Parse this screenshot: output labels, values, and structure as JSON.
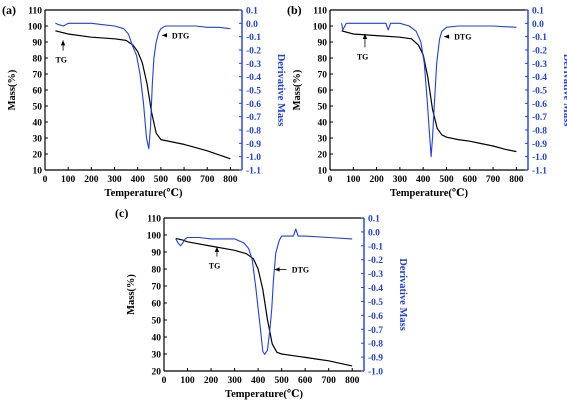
{
  "chart_data": [
    {
      "panel_label": "(a)",
      "type": "line",
      "xlabel": "Temperature(℃)",
      "ylabel": "Mass(%)",
      "y2label": "Derivative Mass",
      "xlim": [
        0,
        850
      ],
      "ylim": [
        10,
        110
      ],
      "y2lim": [
        -1.1,
        0.1
      ],
      "xticks": [
        0,
        100,
        200,
        300,
        400,
        500,
        600,
        700,
        800
      ],
      "yticks": [
        10,
        20,
        30,
        40,
        50,
        60,
        70,
        80,
        90,
        100,
        110
      ],
      "y2ticks": [
        -1.1,
        -1.0,
        -0.9,
        -0.8,
        -0.7,
        -0.6,
        -0.5,
        -0.4,
        -0.3,
        -0.2,
        -0.1,
        0.0,
        0.1
      ],
      "y2tick_labels": [
        "-1.1",
        "-1.0",
        "-0.9",
        "-0.8",
        "-0.7",
        "-0.6",
        "-0.5",
        "-0.4",
        "-0.3",
        "-0.2",
        "-0.1",
        "0.0",
        "0.1"
      ],
      "annotations": [
        {
          "text": "TG",
          "x": 70,
          "y": 79,
          "arrow_to": [
            78,
            91
          ]
        },
        {
          "text": "DTG",
          "x": 585,
          "y": -0.09,
          "arrow_to": [
            505,
            -0.09
          ]
        }
      ],
      "series": [
        {
          "name": "TG",
          "axis": "left",
          "color": "#000000",
          "x": [
            45,
            100,
            200,
            300,
            350,
            380,
            400,
            420,
            440,
            460,
            480,
            500,
            550,
            600,
            650,
            700,
            750,
            800
          ],
          "y": [
            97,
            95,
            93,
            92,
            91,
            88,
            84,
            77,
            64,
            46,
            33,
            29,
            27.5,
            26,
            24,
            22,
            19.5,
            17
          ]
        },
        {
          "name": "DTG",
          "axis": "right",
          "color": "#1f3fe0",
          "x": [
            45,
            60,
            80,
            100,
            150,
            200,
            250,
            300,
            340,
            360,
            380,
            395,
            410,
            425,
            438,
            448,
            455,
            463,
            470,
            480,
            490,
            500,
            520,
            550,
            600,
            650,
            700,
            750,
            800
          ],
          "y": [
            0.0,
            -0.01,
            -0.02,
            0.0,
            0.0,
            0.0,
            -0.01,
            -0.02,
            -0.04,
            -0.08,
            -0.18,
            -0.24,
            -0.38,
            -0.6,
            -0.86,
            -0.94,
            -0.78,
            -0.46,
            -0.26,
            -0.14,
            -0.07,
            -0.04,
            -0.02,
            -0.02,
            -0.02,
            -0.02,
            -0.03,
            -0.03,
            -0.04
          ]
        }
      ]
    },
    {
      "panel_label": "(b)",
      "type": "line",
      "xlabel": "Temperature(℃)",
      "ylabel": "Mass(%)",
      "y2label": "Derivative Mass",
      "xlim": [
        0,
        850
      ],
      "ylim": [
        10,
        110
      ],
      "y2lim": [
        -1.1,
        0.1
      ],
      "xticks": [
        0,
        100,
        200,
        300,
        400,
        500,
        600,
        700,
        800
      ],
      "yticks": [
        10,
        20,
        30,
        40,
        50,
        60,
        70,
        80,
        90,
        100,
        110
      ],
      "y2ticks": [
        -1.1,
        -1.0,
        -0.9,
        -0.8,
        -0.7,
        -0.6,
        -0.5,
        -0.4,
        -0.3,
        -0.2,
        -0.1,
        0.0,
        0.1
      ],
      "y2tick_labels": [
        "-1.1",
        "-1.0",
        "-0.9",
        "-0.8",
        "-0.7",
        "-0.6",
        "-0.5",
        "-0.4",
        "-0.3",
        "-0.2",
        "-0.1",
        "0.0",
        "0.1"
      ],
      "annotations": [
        {
          "text": "TG",
          "x": 140,
          "y": 81,
          "arrow_to": [
            150,
            95
          ]
        },
        {
          "text": "DTG",
          "x": 570,
          "y": -0.1,
          "arrow_to": [
            490,
            -0.1
          ]
        }
      ],
      "series": [
        {
          "name": "TG",
          "axis": "left",
          "color": "#000000",
          "x": [
            50,
            100,
            200,
            300,
            350,
            380,
            400,
            420,
            440,
            460,
            480,
            500,
            550,
            600,
            650,
            700,
            750,
            800
          ],
          "y": [
            97,
            95,
            94,
            93,
            92,
            88,
            82,
            68,
            48,
            36,
            32,
            30.5,
            29,
            28,
            26.5,
            25,
            23,
            21.5
          ]
        },
        {
          "name": "DTG",
          "axis": "right",
          "color": "#1f3fe0",
          "x": [
            50,
            55,
            70,
            100,
            150,
            200,
            240,
            250,
            260,
            300,
            340,
            370,
            390,
            405,
            418,
            428,
            434,
            440,
            448,
            458,
            470,
            480,
            500,
            550,
            600,
            700,
            800
          ],
          "y": [
            0.0,
            -0.05,
            0.0,
            0.0,
            0.0,
            0.0,
            0.0,
            -0.05,
            0.0,
            0.0,
            -0.02,
            -0.06,
            -0.14,
            -0.3,
            -0.6,
            -0.85,
            -1.0,
            -0.86,
            -0.6,
            -0.3,
            -0.12,
            -0.06,
            -0.03,
            -0.02,
            -0.02,
            -0.02,
            -0.03
          ]
        }
      ]
    },
    {
      "panel_label": "(c)",
      "type": "line",
      "xlabel": "Temperature(℃)",
      "ylabel": "Mass(%)",
      "y2label": "Derivative Mass",
      "xlim": [
        0,
        850
      ],
      "ylim": [
        20,
        110
      ],
      "y2lim": [
        -1.0,
        0.1
      ],
      "xticks": [
        0,
        100,
        200,
        300,
        400,
        500,
        600,
        700,
        800
      ],
      "yticks": [
        20,
        30,
        40,
        50,
        60,
        70,
        80,
        90,
        100,
        110
      ],
      "y2ticks": [
        -1.0,
        -0.9,
        -0.8,
        -0.7,
        -0.6,
        -0.5,
        -0.4,
        -0.3,
        -0.2,
        -0.1,
        0.0,
        0.1
      ],
      "y2tick_labels": [
        "-1.0",
        "-0.9",
        "-0.8",
        "-0.7",
        "-0.6",
        "-0.5",
        "-0.4",
        "-0.3",
        "-0.2",
        "-0.1",
        "0.0",
        "0.1"
      ],
      "annotations": [
        {
          "text": "TG",
          "x": 215,
          "y": 82,
          "arrow_to": [
            225,
            93
          ]
        },
        {
          "text": "DTG",
          "x": 580,
          "y": -0.27,
          "arrow_to": [
            470,
            -0.27
          ]
        }
      ],
      "series": [
        {
          "name": "TG",
          "axis": "left",
          "color": "#000000",
          "x": [
            50,
            80,
            100,
            200,
            300,
            350,
            380,
            400,
            420,
            440,
            460,
            480,
            500,
            550,
            600,
            650,
            700,
            750,
            800
          ],
          "y": [
            98,
            97,
            96,
            93.5,
            91,
            89,
            86,
            80,
            68,
            50,
            36,
            31,
            30,
            29,
            28,
            27,
            26,
            24.5,
            23
          ]
        },
        {
          "name": "DTG",
          "axis": "right",
          "color": "#1f3fe0",
          "x": [
            50,
            60,
            70,
            80,
            90,
            100,
            150,
            200,
            250,
            300,
            340,
            360,
            375,
            390,
            400,
            410,
            420,
            428,
            440,
            450,
            458,
            465,
            475,
            490,
            500,
            550,
            560,
            570,
            600,
            700,
            800
          ],
          "y": [
            -0.05,
            -0.08,
            -0.1,
            -0.08,
            -0.05,
            -0.04,
            -0.04,
            -0.05,
            -0.05,
            -0.05,
            -0.08,
            -0.12,
            -0.2,
            -0.4,
            -0.55,
            -0.7,
            -0.86,
            -0.88,
            -0.85,
            -0.7,
            -0.55,
            -0.35,
            -0.15,
            -0.06,
            -0.03,
            -0.03,
            0.02,
            -0.03,
            -0.03,
            -0.04,
            -0.05
          ]
        }
      ]
    }
  ]
}
